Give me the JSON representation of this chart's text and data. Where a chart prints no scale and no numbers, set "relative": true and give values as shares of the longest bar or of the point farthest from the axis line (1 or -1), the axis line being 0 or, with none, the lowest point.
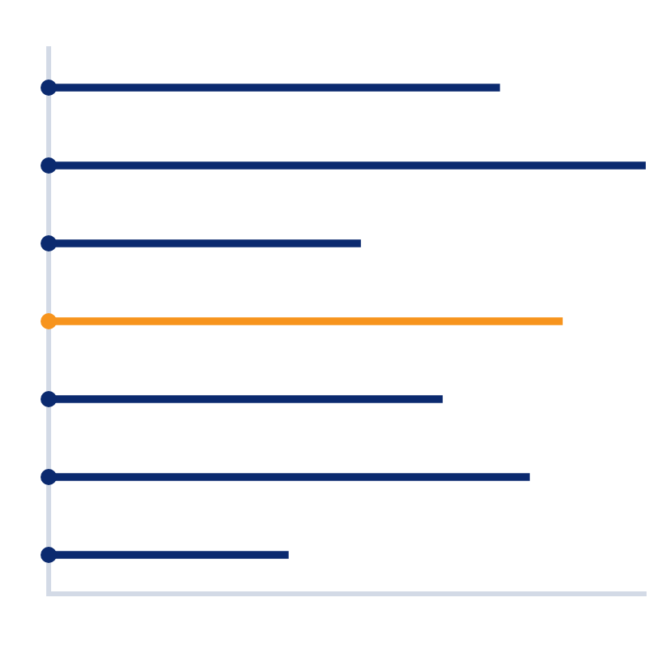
{
  "chart_data": {
    "type": "bar",
    "orientation": "horizontal",
    "relative": true,
    "categories": [
      null,
      null,
      null,
      null,
      null,
      null,
      null
    ],
    "values": [
      0.755,
      1,
      0.522,
      0.86,
      0.659,
      0.805,
      0.401
    ],
    "colors": [
      "#0b2a6f",
      "#0b2a6f",
      "#0b2a6f",
      "#f7941d",
      "#0b2a6f",
      "#0b2a6f",
      "#0b2a6f"
    ],
    "legend": false,
    "grid": false
  }
}
